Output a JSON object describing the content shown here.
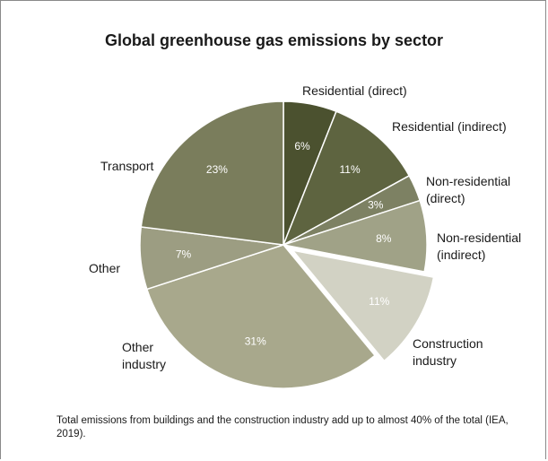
{
  "chart_data": {
    "type": "pie",
    "title": "Global greenhouse gas emissions by sector",
    "slices": [
      {
        "name": "Residential (direct)",
        "label_lines": [
          "Residential (direct)"
        ],
        "value": 6,
        "value_label": "6%",
        "color": "#4b512f",
        "pct_text_color": "#ffffff"
      },
      {
        "name": "Residential (indirect)",
        "label_lines": [
          "Residential (indirect)"
        ],
        "value": 11,
        "value_label": "11%",
        "color": "#5e6440",
        "pct_text_color": "#ffffff"
      },
      {
        "name": "Non-residential (direct)",
        "label_lines": [
          "Non-residential",
          "(direct)"
        ],
        "value": 3,
        "value_label": "3%",
        "color": "#7d8163",
        "pct_text_color": "#ffffff"
      },
      {
        "name": "Non-residential (indirect)",
        "label_lines": [
          "Non-residential",
          "(indirect)"
        ],
        "value": 8,
        "value_label": "8%",
        "color": "#a0a287",
        "pct_text_color": "#ffffff"
      },
      {
        "name": "Construction industry",
        "label_lines": [
          "Construction",
          "industry"
        ],
        "value": 11,
        "value_label": "11%",
        "color": "#d2d2c4",
        "pct_text_color": "#ffffff",
        "exploded": true
      },
      {
        "name": "Other industry",
        "label_lines": [
          "Other",
          "industry"
        ],
        "value": 31,
        "value_label": "31%",
        "color": "#a8a88c",
        "pct_text_color": "#ffffff"
      },
      {
        "name": "Other",
        "label_lines": [
          "Other"
        ],
        "value": 7,
        "value_label": "7%",
        "color": "#9c9d82",
        "pct_text_color": "#ffffff"
      },
      {
        "name": "Transport",
        "label_lines": [
          "Transport"
        ],
        "value": 23,
        "value_label": "23%",
        "color": "#7a7d5c",
        "pct_text_color": "#ffffff"
      }
    ]
  },
  "footnote": "Total emissions from buildings and the construction industry add up to almost 40% of the total (IEA, 2019)."
}
